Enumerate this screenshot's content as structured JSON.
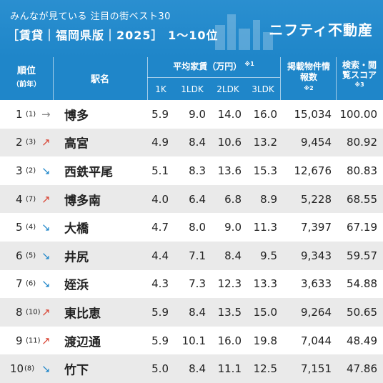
{
  "header": {
    "subtitle": "みんなが見ている 注目の街ベスト30",
    "title": "［賃貸｜福岡県版｜2025］ 1〜10位",
    "brand": "ニフティ不動産"
  },
  "columns": {
    "rank": "順位",
    "rank_sub": "（前年）",
    "station": "駅名",
    "rent": "平均家賃（万円）",
    "rent_note": "※1",
    "k1": "1K",
    "ldk1": "1LDK",
    "ldk2": "2LDK",
    "ldk3": "3LDK",
    "listings": "掲載物件情報数",
    "listings_note": "※2",
    "score": "検索・閲覧スコア",
    "score_note": "※3"
  },
  "rows": [
    {
      "rank": "1",
      "prev": "(1)",
      "trend": "→",
      "trend_class": "flat",
      "name": "博多",
      "k1": "5.9",
      "ldk1": "9.0",
      "ldk2": "14.0",
      "ldk3": "16.0",
      "listings": "15,034",
      "score": "100.00"
    },
    {
      "rank": "2",
      "prev": "(3)",
      "trend": "↗",
      "trend_class": "up",
      "name": "高宮",
      "k1": "4.9",
      "ldk1": "8.4",
      "ldk2": "10.6",
      "ldk3": "13.2",
      "listings": "9,454",
      "score": "80.92"
    },
    {
      "rank": "3",
      "prev": "(2)",
      "trend": "↘",
      "trend_class": "down",
      "name": "西鉄平尾",
      "k1": "5.1",
      "ldk1": "8.3",
      "ldk2": "13.6",
      "ldk3": "15.3",
      "listings": "12,676",
      "score": "80.83"
    },
    {
      "rank": "4",
      "prev": "(7)",
      "trend": "↗",
      "trend_class": "up",
      "name": "博多南",
      "k1": "4.0",
      "ldk1": "6.4",
      "ldk2": "6.8",
      "ldk3": "8.9",
      "listings": "5,228",
      "score": "68.55"
    },
    {
      "rank": "5",
      "prev": "(4)",
      "trend": "↘",
      "trend_class": "down",
      "name": "大橋",
      "k1": "4.7",
      "ldk1": "8.0",
      "ldk2": "9.0",
      "ldk3": "11.3",
      "listings": "7,397",
      "score": "67.19"
    },
    {
      "rank": "6",
      "prev": "(5)",
      "trend": "↘",
      "trend_class": "down",
      "name": "井尻",
      "k1": "4.4",
      "ldk1": "7.1",
      "ldk2": "8.4",
      "ldk3": "9.5",
      "listings": "9,343",
      "score": "59.57"
    },
    {
      "rank": "7",
      "prev": "(6)",
      "trend": "↘",
      "trend_class": "down",
      "name": "姪浜",
      "k1": "4.3",
      "ldk1": "7.3",
      "ldk2": "12.3",
      "ldk3": "13.3",
      "listings": "3,633",
      "score": "54.88"
    },
    {
      "rank": "8",
      "prev": "(10)",
      "trend": "↗",
      "trend_class": "up",
      "name": "東比恵",
      "k1": "5.9",
      "ldk1": "8.4",
      "ldk2": "13.5",
      "ldk3": "15.0",
      "listings": "9,264",
      "score": "50.65"
    },
    {
      "rank": "9",
      "prev": "(11)",
      "trend": "↗",
      "trend_class": "up",
      "name": "渡辺通",
      "k1": "5.9",
      "ldk1": "10.1",
      "ldk2": "16.0",
      "ldk3": "19.8",
      "listings": "7,044",
      "score": "48.49"
    },
    {
      "rank": "10",
      "prev": "(8)",
      "trend": "↘",
      "trend_class": "down",
      "name": "竹下",
      "k1": "5.0",
      "ldk1": "8.4",
      "ldk2": "11.1",
      "ldk3": "12.5",
      "listings": "7,151",
      "score": "47.86"
    }
  ]
}
